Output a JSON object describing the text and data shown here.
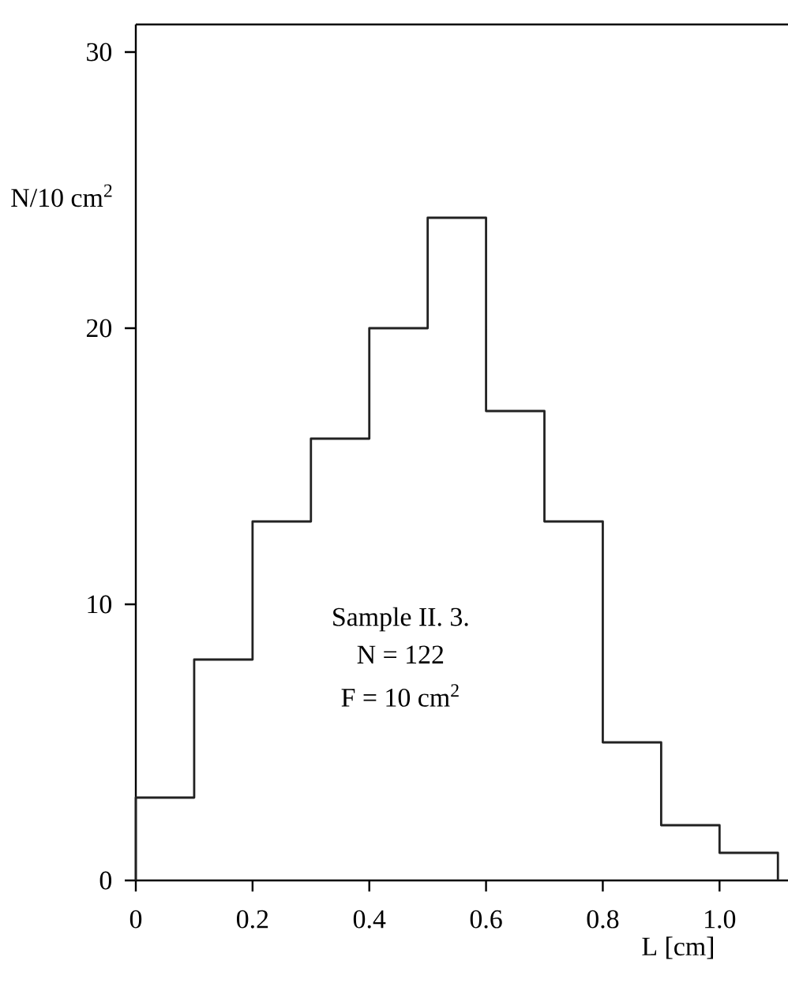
{
  "chart_data": {
    "type": "histogram",
    "bins": [
      0,
      0.1,
      0.2,
      0.3,
      0.4,
      0.5,
      0.6,
      0.7,
      0.8,
      0.9,
      1.0,
      1.1
    ],
    "values": [
      3,
      8,
      13,
      16,
      20,
      24,
      17,
      13,
      5,
      2,
      1
    ],
    "color": "#222222",
    "xlabel": "L  [cm]",
    "ylabel": "N/10 cm$^{2}$",
    "xlim": [
      0,
      1.12
    ],
    "ylim": [
      0,
      31
    ],
    "xticks": [
      0,
      0.2,
      0.4,
      0.6,
      0.8,
      {
        "value": 1,
        "label": "1.0"
      }
    ],
    "yticks": [
      0,
      10,
      20,
      30
    ],
    "annotations": [
      "Sample II. 3.",
      "N = 122",
      "F = 10 cm$^{2}$"
    ]
  }
}
